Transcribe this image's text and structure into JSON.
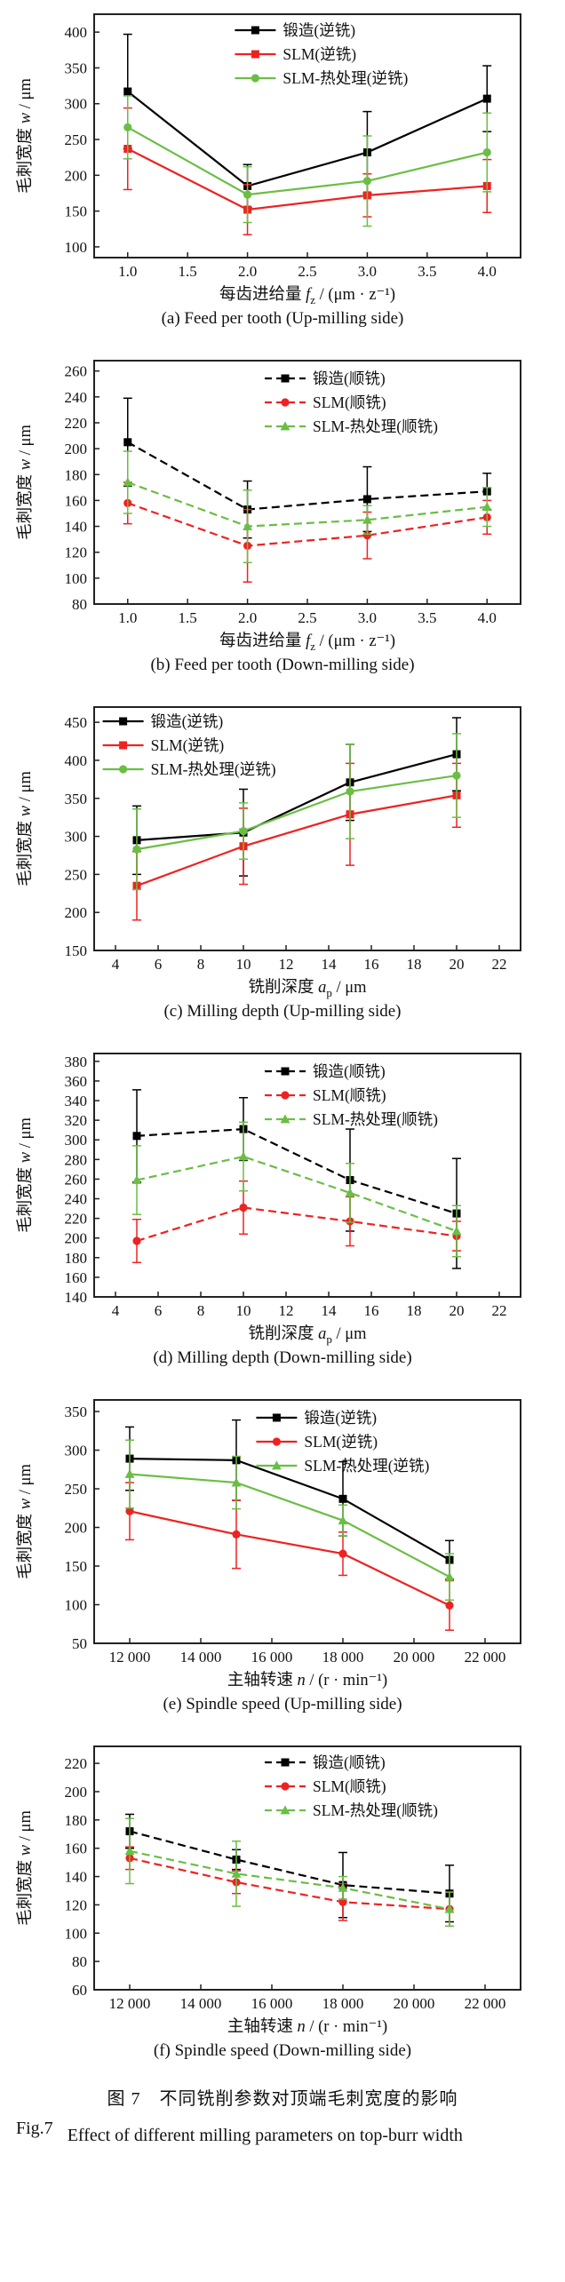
{
  "figure": {
    "caption_zh": "图 7　不同铣削参数对顶端毛刺宽度的影响",
    "caption_fig_label": "Fig.7",
    "caption_en": "Effect of different milling parameters on top-burr width"
  },
  "chart_data": [
    {
      "id": "a",
      "type": "line",
      "caption": "(a) Feed per tooth (Up-milling side)",
      "xlabel": {
        "pre": "每齿进给量 ",
        "var": "f",
        "sub": "z",
        "post": " / (μm · z⁻¹)"
      },
      "ylabel": {
        "pre": "毛刺宽度 ",
        "var": "w",
        "sub": "",
        "post": " / μm"
      },
      "xlim": [
        0.72,
        4.28
      ],
      "ylim": [
        85,
        425
      ],
      "xticks": [
        1.0,
        1.5,
        2.0,
        2.5,
        3.0,
        3.5,
        4.0
      ],
      "xtick_labels": [
        "1.0",
        "1.5",
        "2.0",
        "2.5",
        "3.0",
        "3.5",
        "4.0"
      ],
      "yticks": [
        100,
        150,
        200,
        250,
        300,
        350,
        400
      ],
      "x": [
        1.0,
        2.0,
        3.0,
        4.0
      ],
      "line_style": "solid",
      "legend": {
        "pos": "top-right",
        "x": 0.33,
        "y": 10
      },
      "series": [
        {
          "name": "锻造(逆铣)",
          "color": "#000000",
          "marker": "square",
          "values": [
            317,
            185,
            232,
            307
          ],
          "err": [
            80,
            30,
            57,
            46
          ]
        },
        {
          "name": "SLM(逆铣)",
          "color": "#ee2222",
          "marker": "square",
          "values": [
            237,
            152,
            172,
            185
          ],
          "err": [
            57,
            35,
            30,
            37
          ]
        },
        {
          "name": "SLM-热处理(逆铣)",
          "color": "#6abe45",
          "marker": "circle",
          "values": [
            267,
            173,
            192,
            232
          ],
          "err": [
            44,
            39,
            63,
            55
          ]
        }
      ]
    },
    {
      "id": "b",
      "type": "line",
      "caption": "(b) Feed per tooth (Down-milling side)",
      "xlabel": {
        "pre": "每齿进给量 ",
        "var": "f",
        "sub": "z",
        "post": " / (μm · z⁻¹)"
      },
      "ylabel": {
        "pre": "毛刺宽度 ",
        "var": "w",
        "sub": "",
        "post": " / μm"
      },
      "xlim": [
        0.72,
        4.28
      ],
      "ylim": [
        80,
        268
      ],
      "xticks": [
        1.0,
        1.5,
        2.0,
        2.5,
        3.0,
        3.5,
        4.0
      ],
      "xtick_labels": [
        "1.0",
        "1.5",
        "2.0",
        "2.5",
        "3.0",
        "3.5",
        "4.0"
      ],
      "yticks": [
        80,
        100,
        120,
        140,
        160,
        180,
        200,
        220,
        240,
        260
      ],
      "x": [
        1.0,
        2.0,
        3.0,
        4.0
      ],
      "line_style": "dashed",
      "legend": {
        "pos": "top-right",
        "x": 0.4,
        "y": 12
      },
      "series": [
        {
          "name": "锻造(顺铣)",
          "color": "#000000",
          "marker": "square",
          "values": [
            205,
            153,
            161,
            167
          ],
          "err": [
            34,
            22,
            25,
            14
          ]
        },
        {
          "name": "SLM(顺铣)",
          "color": "#ee2222",
          "marker": "circle",
          "values": [
            158,
            125,
            133,
            147
          ],
          "err": [
            16,
            28,
            18,
            13
          ]
        },
        {
          "name": "SLM-热处理(顺铣)",
          "color": "#6abe45",
          "marker": "triangle",
          "values": [
            174,
            140,
            145,
            155
          ],
          "err": [
            24,
            28,
            11,
            15
          ]
        }
      ]
    },
    {
      "id": "c",
      "type": "line",
      "caption": "(c) Milling depth (Up-milling side)",
      "xlabel": {
        "pre": "铣削深度 ",
        "var": "a",
        "sub": "p",
        "post": " / μm"
      },
      "ylabel": {
        "pre": "毛刺宽度 ",
        "var": "w",
        "sub": "",
        "post": " / μm"
      },
      "xlim": [
        3,
        23
      ],
      "ylim": [
        150,
        470
      ],
      "xticks": [
        4,
        6,
        8,
        10,
        12,
        14,
        16,
        18,
        20,
        22
      ],
      "xtick_labels": [
        "4",
        "6",
        "8",
        "10",
        "12",
        "14",
        "16",
        "18",
        "20",
        "22"
      ],
      "yticks": [
        150,
        200,
        250,
        300,
        350,
        400,
        450
      ],
      "x": [
        5,
        10,
        15,
        20
      ],
      "line_style": "solid",
      "legend": {
        "pos": "top-left",
        "x": 0.02,
        "y": 8
      },
      "series": [
        {
          "name": "锻造(逆铣)",
          "color": "#000000",
          "marker": "square",
          "values": [
            295,
            305,
            371,
            408
          ],
          "err": [
            45,
            57,
            50,
            48
          ]
        },
        {
          "name": "SLM(逆铣)",
          "color": "#ee2222",
          "marker": "square",
          "values": [
            235,
            287,
            329,
            354
          ],
          "err": [
            45,
            50,
            67,
            42
          ]
        },
        {
          "name": "SLM-热处理(逆铣)",
          "color": "#6abe45",
          "marker": "circle",
          "values": [
            283,
            307,
            359,
            380
          ],
          "err": [
            53,
            37,
            62,
            55
          ]
        }
      ]
    },
    {
      "id": "d",
      "type": "line",
      "caption": "(d) Milling depth (Down-milling side)",
      "xlabel": {
        "pre": "铣削深度 ",
        "var": "a",
        "sub": "p",
        "post": " / μm"
      },
      "ylabel": {
        "pre": "毛刺宽度 ",
        "var": "w",
        "sub": "",
        "post": " / μm"
      },
      "xlim": [
        3,
        23
      ],
      "ylim": [
        140,
        388
      ],
      "xticks": [
        4,
        6,
        8,
        10,
        12,
        14,
        16,
        18,
        20,
        22
      ],
      "xtick_labels": [
        "4",
        "6",
        "8",
        "10",
        "12",
        "14",
        "16",
        "18",
        "20",
        "22"
      ],
      "yticks": [
        140,
        160,
        180,
        200,
        220,
        240,
        260,
        280,
        300,
        320,
        340,
        360,
        380
      ],
      "x": [
        5,
        10,
        15,
        20
      ],
      "line_style": "dashed",
      "legend": {
        "pos": "top-right",
        "x": 0.4,
        "y": 12
      },
      "series": [
        {
          "name": "锻造(顺铣)",
          "color": "#000000",
          "marker": "square",
          "values": [
            304,
            311,
            259,
            225
          ],
          "err": [
            47,
            32,
            52,
            56
          ]
        },
        {
          "name": "SLM(顺铣)",
          "color": "#ee2222",
          "marker": "circle",
          "values": [
            197,
            231,
            217,
            202
          ],
          "err": [
            22,
            27,
            25,
            15
          ]
        },
        {
          "name": "SLM-热处理(顺铣)",
          "color": "#6abe45",
          "marker": "triangle",
          "values": [
            259,
            283,
            246,
            207
          ],
          "err": [
            35,
            35,
            30,
            26
          ]
        }
      ]
    },
    {
      "id": "e",
      "type": "line",
      "caption": "(e) Spindle speed (Up-milling side)",
      "xlabel": {
        "pre": "主轴转速 ",
        "var": "n",
        "sub": "",
        "post": " / (r · min⁻¹)"
      },
      "ylabel": {
        "pre": "毛刺宽度 ",
        "var": "w",
        "sub": "",
        "post": " / μm"
      },
      "xlim": [
        11000,
        23000
      ],
      "ylim": [
        50,
        365
      ],
      "xticks": [
        12000,
        14000,
        16000,
        18000,
        20000,
        22000
      ],
      "xtick_labels": [
        "12 000",
        "14 000",
        "16 000",
        "18 000",
        "20 000",
        "22 000"
      ],
      "yticks": [
        50,
        100,
        150,
        200,
        250,
        300,
        350
      ],
      "x": [
        12000,
        15000,
        18000,
        21000
      ],
      "line_style": "solid",
      "legend": {
        "pos": "top-right",
        "x": 0.38,
        "y": 12
      },
      "series": [
        {
          "name": "锻造(逆铣)",
          "color": "#000000",
          "marker": "square",
          "values": [
            289,
            287,
            237,
            158
          ],
          "err": [
            41,
            52,
            48,
            25
          ]
        },
        {
          "name": "SLM(逆铣)",
          "color": "#ee2222",
          "marker": "circle",
          "values": [
            221,
            191,
            166,
            99
          ],
          "err": [
            37,
            44,
            28,
            32
          ]
        },
        {
          "name": "SLM-热处理(逆铣)",
          "color": "#6abe45",
          "marker": "triangle",
          "values": [
            269,
            258,
            209,
            136
          ],
          "err": [
            44,
            34,
            20,
            30
          ]
        }
      ]
    },
    {
      "id": "f",
      "type": "line",
      "caption": "(f) Spindle speed (Down-milling side)",
      "xlabel": {
        "pre": "主轴转速 ",
        "var": "n",
        "sub": "",
        "post": " / (r · min⁻¹)"
      },
      "ylabel": {
        "pre": "毛刺宽度 ",
        "var": "w",
        "sub": "",
        "post": " / μm"
      },
      "xlim": [
        11000,
        23000
      ],
      "ylim": [
        60,
        232
      ],
      "xticks": [
        12000,
        14000,
        16000,
        18000,
        20000,
        22000
      ],
      "xtick_labels": [
        "12 000",
        "14 000",
        "16 000",
        "18 000",
        "20 000",
        "22 000"
      ],
      "yticks": [
        60,
        80,
        100,
        120,
        140,
        160,
        180,
        200,
        220
      ],
      "x": [
        12000,
        15000,
        18000,
        21000
      ],
      "line_style": "dashed",
      "legend": {
        "pos": "top-right",
        "x": 0.4,
        "y": 10
      },
      "series": [
        {
          "name": "锻造(顺铣)",
          "color": "#000000",
          "marker": "square",
          "values": [
            172,
            152,
            134,
            128
          ],
          "err": [
            12,
            7,
            23,
            20
          ]
        },
        {
          "name": "SLM(顺铣)",
          "color": "#ee2222",
          "marker": "circle",
          "values": [
            153,
            136,
            122,
            117
          ],
          "err": [
            8,
            8,
            13,
            12
          ]
        },
        {
          "name": "SLM-热处理(顺铣)",
          "color": "#6abe45",
          "marker": "triangle",
          "values": [
            158,
            142,
            132,
            117
          ],
          "err": [
            23,
            23,
            8,
            12
          ]
        }
      ]
    }
  ]
}
